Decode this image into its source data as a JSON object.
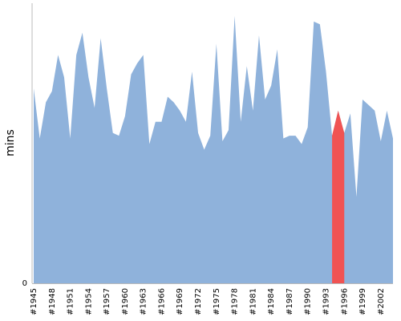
{
  "chart_data": {
    "type": "area",
    "title": "",
    "xlabel": "",
    "ylabel": "mins",
    "ylim": [
      0,
      100
    ],
    "grid": false,
    "legend": "none",
    "colors": {
      "area": "#8fb2db",
      "highlight": "#f05353",
      "axis": "#bbbbbb"
    },
    "y_tick_labels": [
      "0"
    ],
    "x_tick_labels": [
      "#1945",
      "#1948",
      "#1951",
      "#1954",
      "#1957",
      "#1960",
      "#1963",
      "#1966",
      "#1969",
      "#1972",
      "#1975",
      "#1978",
      "#1981",
      "#1984",
      "#1987",
      "#1990",
      "#1993",
      "#1996",
      "#1999",
      "#2002"
    ],
    "x": [
      1945,
      1946,
      1947,
      1948,
      1949,
      1950,
      1951,
      1952,
      1953,
      1954,
      1955,
      1956,
      1957,
      1958,
      1959,
      1960,
      1961,
      1962,
      1963,
      1964,
      1965,
      1966,
      1967,
      1968,
      1969,
      1970,
      1971,
      1972,
      1973,
      1974,
      1975,
      1976,
      1977,
      1978,
      1979,
      1980,
      1981,
      1982,
      1983,
      1984,
      1985,
      1986,
      1987,
      1988,
      1989,
      1990,
      1991,
      1992,
      1993,
      1994,
      1995,
      1996,
      1997,
      1998,
      1999,
      2000,
      2001,
      2002,
      2003,
      2004
    ],
    "values": [
      70,
      52,
      65,
      69,
      82,
      74,
      52,
      82,
      90,
      74,
      63,
      88,
      70,
      54,
      53,
      60,
      75,
      79,
      82,
      50,
      58,
      58,
      67,
      65,
      62,
      58,
      76,
      54,
      48,
      53,
      86,
      51,
      55,
      96,
      58,
      78,
      62,
      89,
      66,
      71,
      84,
      52,
      53,
      53,
      50,
      56,
      94,
      93,
      76,
      53,
      62,
      54,
      61,
      31,
      66,
      64,
      62,
      51,
      62,
      52
    ],
    "highlight": {
      "from": 1994,
      "to": 1996
    }
  }
}
